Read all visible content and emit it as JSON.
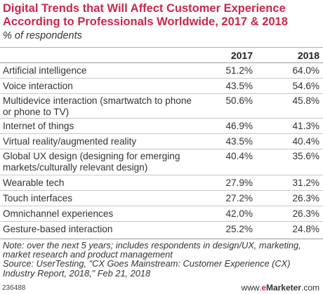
{
  "title": "Digital Trends that Will Affect Customer Experience According to Professionals Worldwide, 2017 & 2018",
  "subtitle": "% of respondents",
  "chart_data": {
    "type": "table",
    "columns": [
      "2017",
      "2018"
    ],
    "rows": [
      {
        "label": "Artificial intelligence",
        "values": [
          "51.2%",
          "64.0%"
        ]
      },
      {
        "label": "Voice interaction",
        "values": [
          "43.5%",
          "54.6%"
        ]
      },
      {
        "label": "Multidevice interaction (smartwatch to phone or phone to TV)",
        "values": [
          "50.6%",
          "45.8%"
        ]
      },
      {
        "label": "Internet of things",
        "values": [
          "46.9%",
          "41.3%"
        ]
      },
      {
        "label": "Virtual reality/augmented reality",
        "values": [
          "43.5%",
          "40.4%"
        ]
      },
      {
        "label": "Global UX design (designing for emerging markets/culturally relevant design)",
        "values": [
          "40.4%",
          "35.6%"
        ]
      },
      {
        "label": "Wearable tech",
        "values": [
          "27.9%",
          "31.2%"
        ]
      },
      {
        "label": "Touch interfaces",
        "values": [
          "27.2%",
          "26.3%"
        ]
      },
      {
        "label": "Omnichannel experiences",
        "values": [
          "42.0%",
          "26.3%"
        ]
      },
      {
        "label": "Gesture-based interaction",
        "values": [
          "25.2%",
          "24.8%"
        ]
      }
    ]
  },
  "note": "Note: over the next 5 years; includes respondents in design/UX, marketing, market research and product management",
  "source": "Source: UserTesting, \"CX Goes Mainstream: Customer Experience (CX) Industry Report, 2018,\" Feb 21, 2018",
  "footer_id": "236488",
  "brand": {
    "prefix": "www.",
    "e": "e",
    "name": "Marketer",
    "suffix": ".com"
  }
}
